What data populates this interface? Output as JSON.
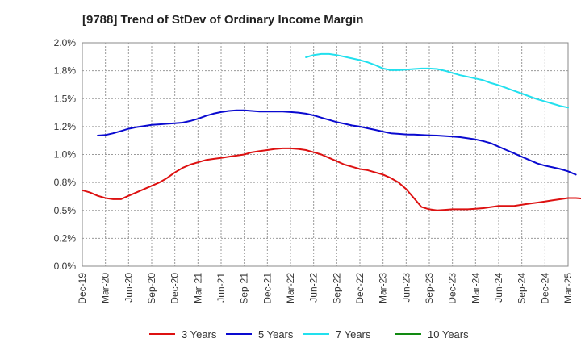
{
  "chart_data": {
    "type": "line",
    "title": "[9788]  Trend of StDev of Ordinary Income Margin",
    "xlabel": "",
    "ylabel": "",
    "ylim": [
      0,
      2.0
    ],
    "yticks": [
      "0.0%",
      "0.2%",
      "0.5%",
      "0.8%",
      "1.0%",
      "1.2%",
      "1.5%",
      "1.8%",
      "2.0%"
    ],
    "x_ticks": [
      "Dec-19",
      "Mar-20",
      "Jun-20",
      "Sep-20",
      "Dec-20",
      "Mar-21",
      "Jun-21",
      "Sep-21",
      "Dec-21",
      "Mar-22",
      "Jun-22",
      "Sep-22",
      "Dec-22",
      "Mar-23",
      "Jun-23",
      "Sep-23",
      "Dec-23",
      "Mar-24",
      "Jun-24",
      "Sep-24",
      "Dec-24",
      "Mar-25"
    ],
    "grid": true,
    "legend_position": "bottom",
    "series": [
      {
        "name": "3 Years",
        "color": "#dd1111",
        "start_index": 0,
        "values": [
          0.68,
          0.66,
          0.63,
          0.61,
          0.6,
          0.6,
          0.63,
          0.66,
          0.69,
          0.72,
          0.75,
          0.79,
          0.84,
          0.88,
          0.91,
          0.93,
          0.95,
          0.96,
          0.97,
          0.98,
          0.99,
          1.0,
          1.02,
          1.03,
          1.04,
          1.05,
          1.055,
          1.055,
          1.05,
          1.04,
          1.02,
          1.0,
          0.97,
          0.94,
          0.91,
          0.89,
          0.87,
          0.86,
          0.84,
          0.82,
          0.79,
          0.75,
          0.69,
          0.61,
          0.53,
          0.51,
          0.5,
          0.505,
          0.51,
          0.51,
          0.51,
          0.515,
          0.52,
          0.53,
          0.54,
          0.54,
          0.54,
          0.55,
          0.56,
          0.57,
          0.58,
          0.59,
          0.6,
          0.61,
          0.61,
          0.605,
          0.6,
          0.6
        ]
      },
      {
        "name": "5 Years",
        "color": "#0a0ad0",
        "start_index": 2,
        "values": [
          1.17,
          1.175,
          1.19,
          1.21,
          1.23,
          1.245,
          1.255,
          1.265,
          1.27,
          1.275,
          1.28,
          1.285,
          1.3,
          1.32,
          1.345,
          1.365,
          1.38,
          1.39,
          1.395,
          1.395,
          1.39,
          1.385,
          1.385,
          1.385,
          1.385,
          1.38,
          1.375,
          1.365,
          1.35,
          1.33,
          1.31,
          1.29,
          1.275,
          1.26,
          1.25,
          1.235,
          1.22,
          1.205,
          1.19,
          1.185,
          1.18,
          1.178,
          1.175,
          1.172,
          1.17,
          1.165,
          1.16,
          1.155,
          1.145,
          1.135,
          1.12,
          1.1,
          1.07,
          1.04,
          1.01,
          0.98,
          0.95,
          0.92,
          0.9,
          0.885,
          0.87,
          0.85,
          0.82
        ]
      },
      {
        "name": "7 Years",
        "color": "#22e0ee",
        "start_index": 29,
        "values": [
          1.87,
          1.89,
          1.9,
          1.9,
          1.89,
          1.875,
          1.86,
          1.845,
          1.825,
          1.8,
          1.77,
          1.755,
          1.755,
          1.76,
          1.765,
          1.77,
          1.77,
          1.765,
          1.75,
          1.73,
          1.71,
          1.695,
          1.68,
          1.665,
          1.64,
          1.62,
          1.595,
          1.57,
          1.545,
          1.52,
          1.495,
          1.475,
          1.455,
          1.435,
          1.42
        ]
      },
      {
        "name": "10 Years",
        "color": "#128a12",
        "start_index": 0,
        "values": []
      }
    ]
  }
}
